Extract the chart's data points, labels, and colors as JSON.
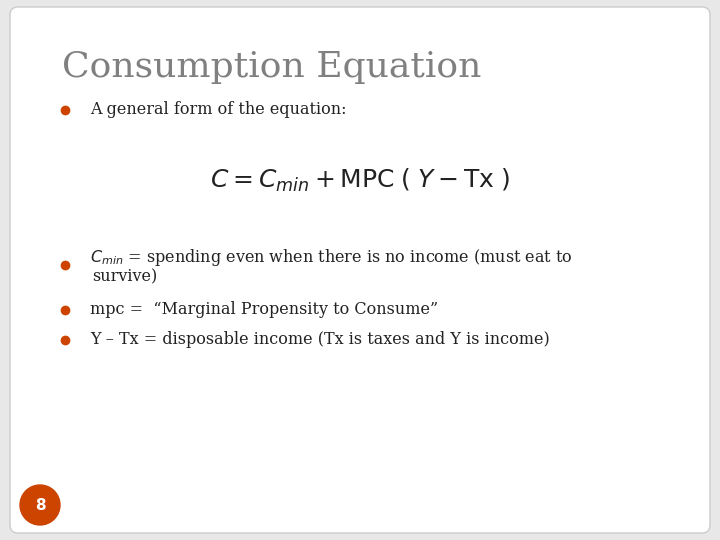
{
  "title": "Consumption Equation",
  "title_color": "#808080",
  "title_fontsize": 26,
  "background_color": "#ffffff",
  "slide_bg": "#e8e8e8",
  "bullet_color": "#cc4400",
  "bullet1": "A general form of the equation:",
  "equation": "$C = C_{min} + \\mathrm{MPC}\\;(\\;Y - \\mathrm{Tx}\\;)$",
  "bullet2_line1": "$C_{min}$ = spending even when there is no income (must eat to",
  "bullet2_line2": "survive)",
  "bullet3": "mpc =  “Marginal Propensity to Consume”",
  "bullet4": "Y – Tx = disposable income (Tx is taxes and Y is income)",
  "page_number": "8",
  "page_circle_color": "#cc4400",
  "text_color": "#222222",
  "body_fontsize": 11.5,
  "eq_fontsize": 18
}
